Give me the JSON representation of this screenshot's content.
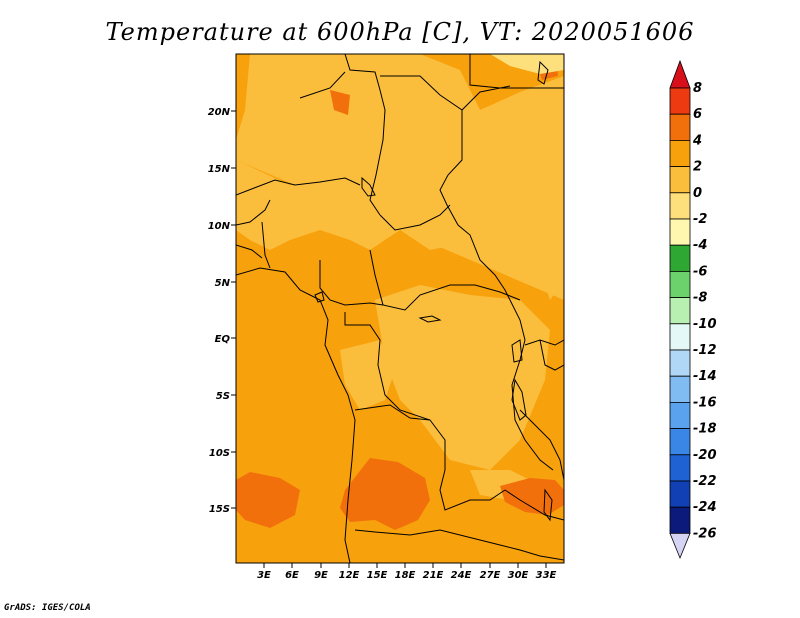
{
  "title": "Temperature at 600hPa [C], VT: 2020051606",
  "credit": "GrADS: IGES/COLA",
  "map": {
    "lat_labels": [
      "20N",
      "15N",
      "10N",
      "5N",
      "EQ",
      "5S",
      "10S",
      "15S"
    ],
    "lon_labels": [
      "3E",
      "6E",
      "9E",
      "12E",
      "15E",
      "18E",
      "21E",
      "24E",
      "27E",
      "30E",
      "33E"
    ]
  },
  "colorbar": {
    "labels": [
      "8",
      "6",
      "4",
      "2",
      "0",
      "-2",
      "-4",
      "-6",
      "-8",
      "-10",
      "-12",
      "-14",
      "-16",
      "-18",
      "-20",
      "-22",
      "-24",
      "-26"
    ],
    "colors": {
      "over": "#d8101c",
      "6_8": "#ee3a10",
      "4_6": "#f2700c",
      "2_4": "#f7a10c",
      "0_2": "#fbbe3c",
      "m2_0": "#fde07c",
      "m4_m2": "#fff6b0",
      "m6_m4": "#2ea832",
      "m8_m6": "#6cd36c",
      "m10_m8": "#b7f0b0",
      "m12_m10": "#e4f8f8",
      "m14_m12": "#b0d8f6",
      "m16_m14": "#80bcf2",
      "m18_m16": "#5aa2ee",
      "m20_m18": "#3a86e6",
      "m22_m20": "#1e62d4",
      "m24_m22": "#1040b4",
      "m26_m24": "#0c1a7c",
      "under": "#d6d4f4"
    }
  }
}
